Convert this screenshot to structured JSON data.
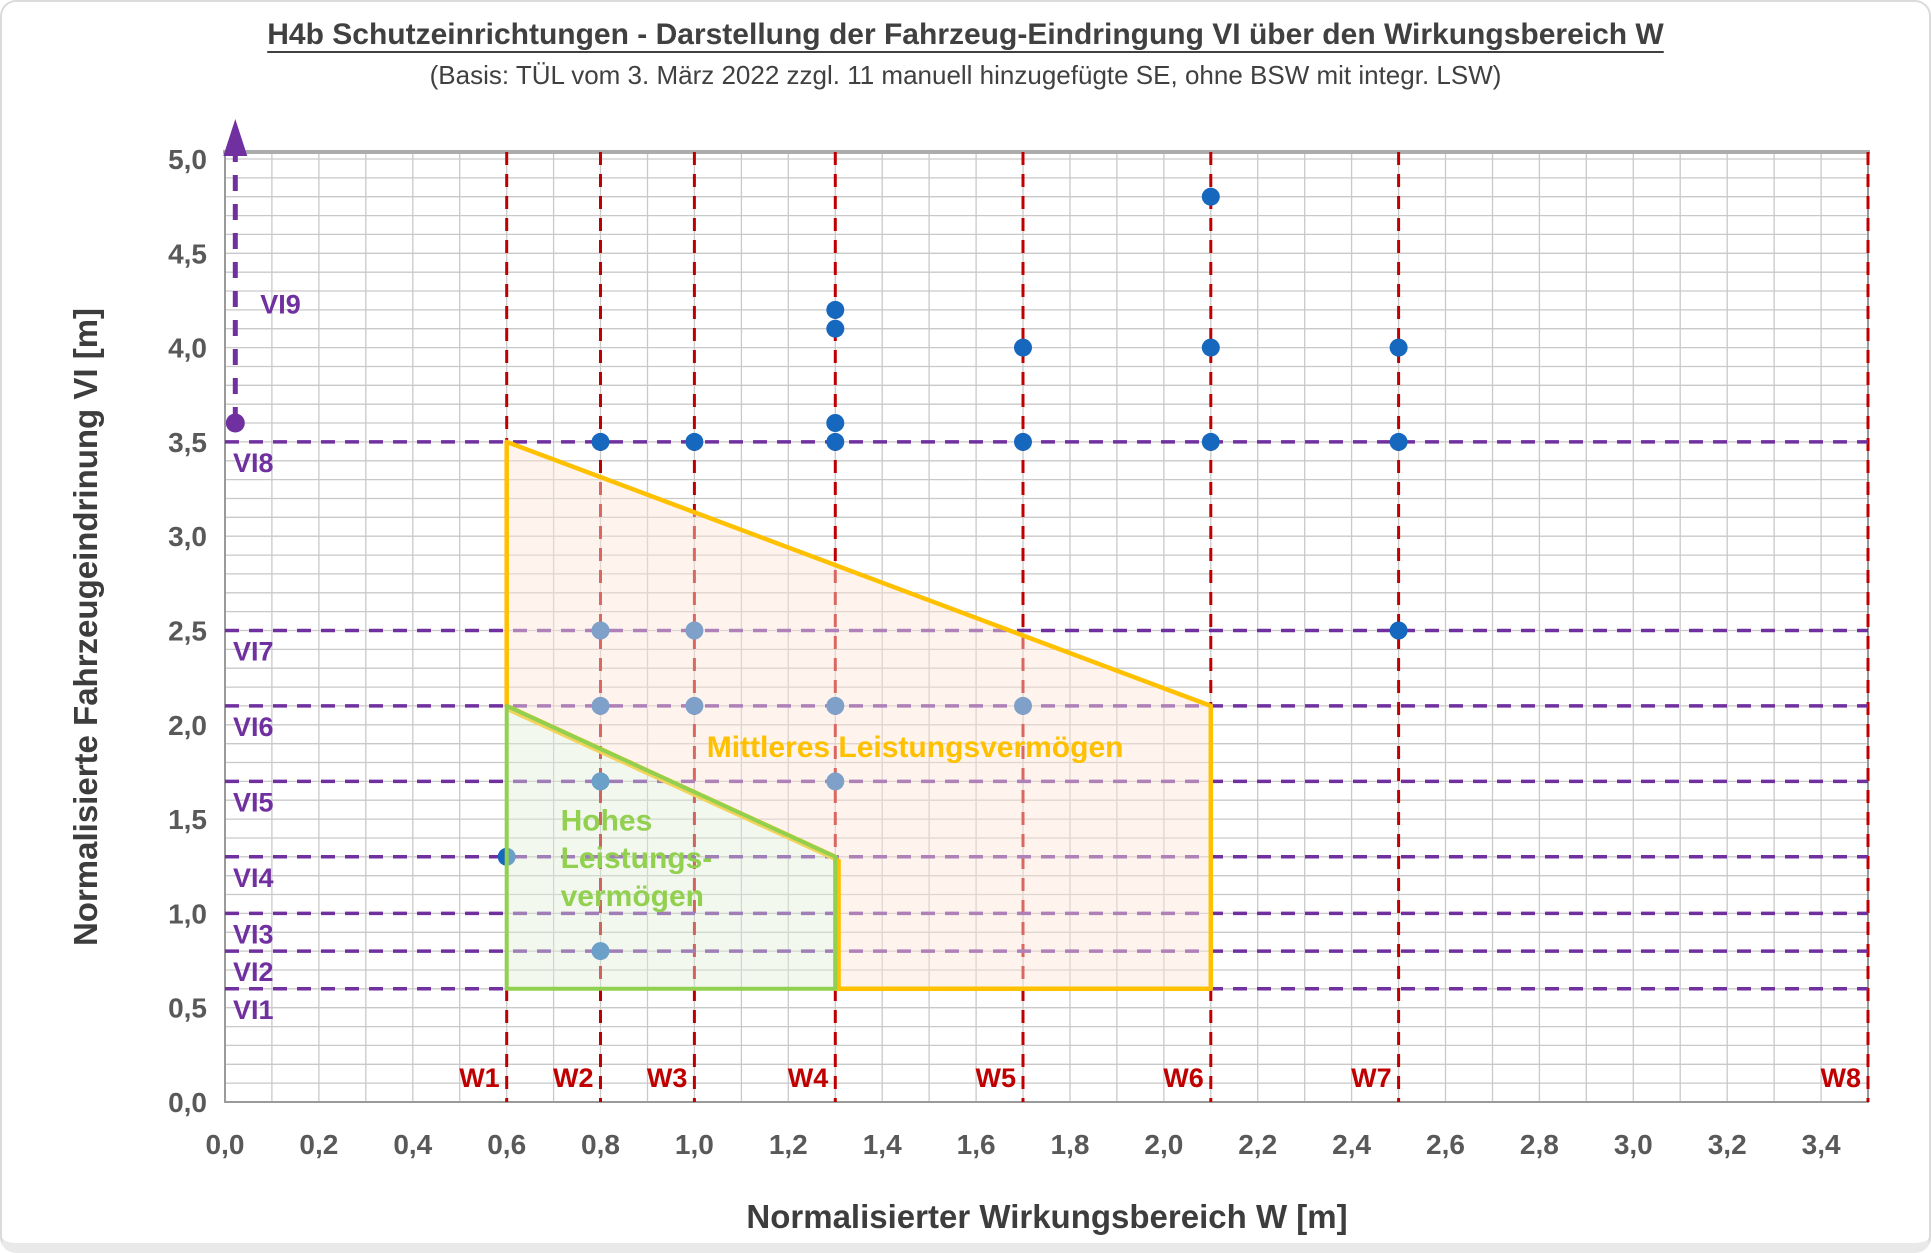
{
  "title": "H4b Schutzeinrichtungen - Darstellung der Fahrzeug-Eindringung VI über den Wirkungsbereich W",
  "subtitle": "(Basis: TÜL vom 3. März 2022 zzgl. 11 manuell hinzugefügte SE, ohne BSW mit integr. LSW)",
  "chart_data": {
    "type": "scatter",
    "xlabel": "Normalisierter Wirkungsbereich W [m]",
    "ylabel": "Normalisierte Fahrzeugeindrinung VI [m]",
    "xlim": [
      0,
      3.5
    ],
    "ylim": [
      0,
      5.0
    ],
    "x_tick_step": 0.2,
    "x_tick_count": 18,
    "y_tick_step": 0.5,
    "y_tick_count": 11,
    "grid_step": 0.1,
    "decimal_comma": true,
    "grid": "on",
    "points": [
      [
        0.6,
        1.3
      ],
      [
        0.8,
        0.8
      ],
      [
        0.8,
        1.7
      ],
      [
        0.8,
        2.1
      ],
      [
        0.8,
        2.5
      ],
      [
        0.8,
        3.5
      ],
      [
        1.0,
        2.1
      ],
      [
        1.0,
        2.5
      ],
      [
        1.0,
        3.5
      ],
      [
        1.3,
        1.7
      ],
      [
        1.3,
        2.1
      ],
      [
        1.3,
        3.5
      ],
      [
        1.3,
        3.6
      ],
      [
        1.3,
        4.1
      ],
      [
        1.3,
        4.2
      ],
      [
        1.7,
        2.1
      ],
      [
        1.7,
        3.5
      ],
      [
        1.7,
        4.0
      ],
      [
        2.1,
        3.5
      ],
      [
        2.1,
        4.0
      ],
      [
        2.1,
        4.8
      ],
      [
        2.5,
        2.5
      ],
      [
        2.5,
        3.5
      ],
      [
        2.5,
        4.0
      ]
    ],
    "w_lines": [
      {
        "label": "W1",
        "value": 0.6
      },
      {
        "label": "W2",
        "value": 0.8
      },
      {
        "label": "W3",
        "value": 1.0
      },
      {
        "label": "W4",
        "value": 1.3
      },
      {
        "label": "W5",
        "value": 1.7
      },
      {
        "label": "W6",
        "value": 2.1
      },
      {
        "label": "W7",
        "value": 2.5
      },
      {
        "label": "W8",
        "value": 3.5
      }
    ],
    "vi_lines": [
      {
        "label": "VI1",
        "value": 0.6
      },
      {
        "label": "VI2",
        "value": 0.8
      },
      {
        "label": "VI3",
        "value": 1.0
      },
      {
        "label": "VI4",
        "value": 1.3
      },
      {
        "label": "VI5",
        "value": 1.7
      },
      {
        "label": "VI6",
        "value": 2.1
      },
      {
        "label": "VI7",
        "value": 2.5
      },
      {
        "label": "VI8",
        "value": 3.5
      }
    ],
    "vi9": {
      "label": "VI9",
      "x": 0.022,
      "dot_y": 3.6,
      "label_x": 0.075,
      "label_y": 4.18
    },
    "regions": {
      "medium": {
        "label": "Mittleres Leistungsvermögen",
        "polygon": [
          [
            0.6,
            3.5
          ],
          [
            2.1,
            2.1
          ],
          [
            2.1,
            0.6
          ],
          [
            1.3,
            0.6
          ],
          [
            1.3,
            1.3
          ],
          [
            0.6,
            2.1
          ]
        ],
        "label_x": 1.47,
        "label_y": 1.83
      },
      "high": {
        "label_lines": [
          "Hohes",
          "Leistungs-",
          "vermögen"
        ],
        "polygon": [
          [
            0.6,
            2.1
          ],
          [
            1.3,
            1.3
          ],
          [
            1.3,
            0.6
          ],
          [
            0.6,
            0.6
          ]
        ],
        "label_x": 0.715,
        "label_y_start": 1.44,
        "label_line_step": 0.2
      }
    },
    "colors": {
      "accent_red": "#C00000",
      "accent_purple": "#7030A0",
      "point_blue": "#1668BE",
      "grid": "#C9C9C9",
      "plot_border": "#9A9A9A",
      "tick_text": "#595959",
      "title_text": "#404040",
      "medium_fill": "#FCE4D6",
      "medium_border": "#FFC000",
      "high_fill": "#E2EFDA",
      "high_border": "#92D050"
    }
  }
}
